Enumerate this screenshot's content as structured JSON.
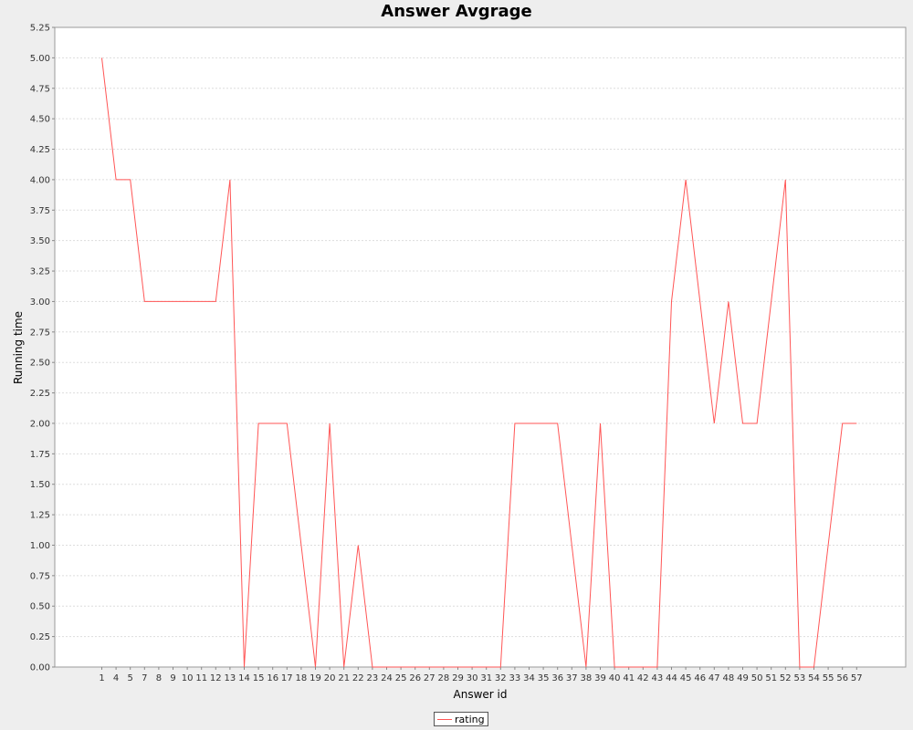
{
  "chart_data": {
    "type": "line",
    "title": "Answer Avgrage",
    "xlabel": "Answer id",
    "ylabel": "Running time",
    "ylim": [
      0,
      5.25
    ],
    "yticks": [
      "0.00",
      "0.25",
      "0.50",
      "0.75",
      "1.00",
      "1.25",
      "1.50",
      "1.75",
      "2.00",
      "2.25",
      "2.50",
      "2.75",
      "3.00",
      "3.25",
      "3.50",
      "3.75",
      "4.00",
      "4.25",
      "4.50",
      "4.75",
      "5.00",
      "5.25"
    ],
    "categories": [
      "1",
      "4",
      "5",
      "7",
      "8",
      "9",
      "10",
      "11",
      "12",
      "13",
      "14",
      "15",
      "16",
      "17",
      "18",
      "19",
      "20",
      "21",
      "22",
      "23",
      "24",
      "25",
      "26",
      "27",
      "28",
      "29",
      "30",
      "31",
      "32",
      "33",
      "34",
      "35",
      "36",
      "37",
      "38",
      "39",
      "40",
      "41",
      "42",
      "43",
      "44",
      "45",
      "46",
      "47",
      "48",
      "49",
      "50",
      "51",
      "52",
      "53",
      "54",
      "55",
      "56",
      "57"
    ],
    "series": [
      {
        "name": "rating",
        "color": "#ff5555",
        "values": [
          5,
          4,
          4,
          3,
          3,
          3,
          3,
          3,
          3,
          4,
          0,
          2,
          2,
          2,
          1,
          0,
          2,
          0,
          1,
          0,
          0,
          0,
          0,
          0,
          0,
          0,
          0,
          0,
          0,
          2,
          2,
          2,
          2,
          1,
          0,
          2,
          0,
          0,
          0,
          0,
          3,
          4,
          3,
          2,
          3,
          2,
          2,
          3,
          4,
          0,
          0,
          1,
          2,
          2
        ]
      }
    ],
    "grid": true,
    "legend_position": "bottom-center"
  }
}
